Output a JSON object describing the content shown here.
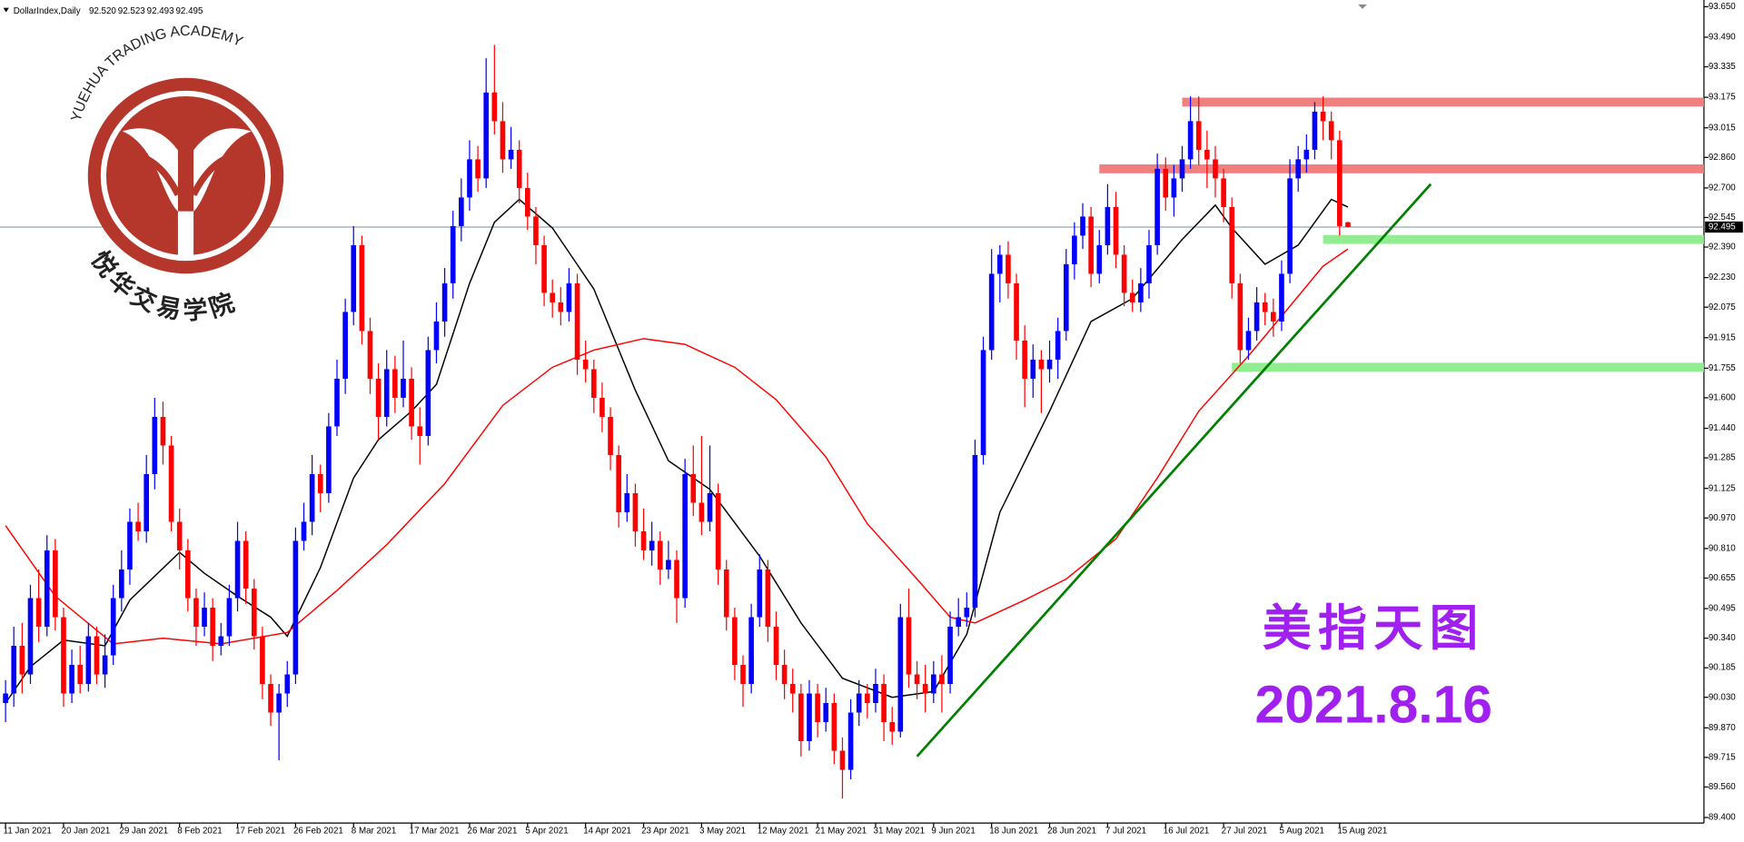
{
  "chart_data": {
    "type": "candlestick",
    "header_text": "DollarIndex,Daily",
    "header_values": [
      "92.520",
      "92.523",
      "92.493",
      "92.495"
    ],
    "logo_text": "YUEHUA TRADING ACADEMY",
    "logo_text_cn": "悦华交易学院",
    "annotations": [
      "美指天图",
      "2021.8.16"
    ],
    "annotation_color": "#a020f0",
    "up_color": "#0000ff",
    "down_color": "#ff0000",
    "ylim": [
      89.4,
      93.65
    ],
    "xlim": [
      -0.67,
      204.97
    ],
    "yticks": [
      {
        "value": 93.65,
        "label": "93.650"
      },
      {
        "value": 93.49,
        "label": "93.490"
      },
      93.335,
      93.175,
      93.015,
      {
        "value": 92.86,
        "label": "92.860"
      },
      {
        "value": 92.7,
        "label": "92.700"
      },
      92.545,
      {
        "value": 92.39,
        "label": "92.390"
      },
      {
        "value": 92.23,
        "label": "92.230"
      },
      92.075,
      91.915,
      91.755,
      {
        "value": 91.6,
        "label": "91.600"
      },
      {
        "value": 91.44,
        "label": "91.440"
      },
      91.285,
      91.125,
      {
        "value": 90.97,
        "label": "90.970"
      },
      {
        "value": 90.81,
        "label": "90.810"
      },
      90.655,
      90.495,
      {
        "value": 90.34,
        "label": "90.340"
      },
      90.185,
      {
        "value": 90.03,
        "label": "90.030"
      },
      {
        "value": 89.87,
        "label": "89.870"
      },
      89.715,
      {
        "value": 89.56,
        "label": "89.560"
      },
      {
        "value": 89.4,
        "label": "89.400"
      }
    ],
    "xticks": [
      {
        "value": 0,
        "label": "11 Jan 2021"
      },
      {
        "value": 7,
        "label": "20 Jan 2021"
      },
      {
        "value": 14,
        "label": "29 Jan 2021"
      },
      {
        "value": 21,
        "label": "8 Feb 2021"
      },
      {
        "value": 28,
        "label": "17 Feb 2021"
      },
      {
        "value": 35,
        "label": "26 Feb 2021"
      },
      {
        "value": 42,
        "label": "8 Mar 2021"
      },
      {
        "value": 49,
        "label": "17 Mar 2021"
      },
      {
        "value": 56,
        "label": "26 Mar 2021"
      },
      {
        "value": 63,
        "label": "5 Apr 2021"
      },
      {
        "value": 70,
        "label": "14 Apr 2021"
      },
      {
        "value": 77,
        "label": "23 Apr 2021"
      },
      {
        "value": 84,
        "label": "3 May 2021"
      },
      {
        "value": 91,
        "label": "12 May 2021"
      },
      {
        "value": 98,
        "label": "21 May 2021"
      },
      {
        "value": 105,
        "label": "31 May 2021"
      },
      {
        "value": 112,
        "label": "9 Jun 2021"
      },
      {
        "value": 119,
        "label": "18 Jun 2021"
      },
      {
        "value": 126,
        "label": "28 Jun 2021"
      },
      {
        "value": 133,
        "label": "7 Jul 2021"
      },
      {
        "value": 140,
        "label": "16 Jul 2021"
      },
      {
        "value": 147,
        "label": "27 Jul 2021"
      },
      {
        "value": 154,
        "label": "5 Aug 2021"
      },
      {
        "value": 161,
        "label": "15 Aug 2021"
      }
    ],
    "last_price": 92.495,
    "ohlc": [
      [
        90.0,
        90.12,
        89.9,
        90.05
      ],
      [
        90.05,
        90.4,
        89.98,
        90.3
      ],
      [
        90.3,
        90.42,
        90.05,
        90.15
      ],
      [
        90.15,
        90.62,
        90.1,
        90.55
      ],
      [
        90.55,
        90.7,
        90.32,
        90.4
      ],
      [
        90.4,
        90.88,
        90.35,
        90.8
      ],
      [
        90.8,
        90.86,
        90.38,
        90.45
      ],
      [
        90.45,
        90.5,
        89.98,
        90.05
      ],
      [
        90.05,
        90.28,
        90.0,
        90.2
      ],
      [
        90.2,
        90.3,
        90.05,
        90.1
      ],
      [
        90.1,
        90.42,
        90.06,
        90.35
      ],
      [
        90.35,
        90.4,
        90.1,
        90.15
      ],
      [
        90.15,
        90.36,
        90.08,
        90.25
      ],
      [
        90.25,
        90.62,
        90.2,
        90.55
      ],
      [
        90.55,
        90.8,
        90.48,
        90.7
      ],
      [
        90.7,
        91.02,
        90.62,
        90.95
      ],
      [
        90.95,
        91.05,
        90.85,
        90.9
      ],
      [
        90.9,
        91.3,
        90.84,
        91.2
      ],
      [
        91.2,
        91.6,
        91.12,
        91.5
      ],
      [
        91.5,
        91.58,
        91.25,
        91.35
      ],
      [
        91.35,
        91.4,
        90.9,
        90.95
      ],
      [
        90.95,
        91.02,
        90.7,
        90.8
      ],
      [
        90.8,
        90.86,
        90.48,
        90.55
      ],
      [
        90.55,
        90.6,
        90.3,
        90.4
      ],
      [
        90.4,
        90.58,
        90.35,
        90.5
      ],
      [
        90.5,
        90.55,
        90.22,
        90.3
      ],
      [
        90.3,
        90.42,
        90.25,
        90.35
      ],
      [
        90.35,
        90.62,
        90.3,
        90.55
      ],
      [
        90.55,
        90.95,
        90.48,
        90.85
      ],
      [
        90.85,
        90.9,
        90.52,
        90.6
      ],
      [
        90.6,
        90.65,
        90.28,
        90.35
      ],
      [
        90.35,
        90.4,
        90.02,
        90.1
      ],
      [
        90.1,
        90.15,
        89.88,
        89.95
      ],
      [
        89.95,
        90.1,
        89.7,
        90.05
      ],
      [
        90.05,
        90.22,
        89.98,
        90.15
      ],
      [
        90.15,
        90.92,
        90.1,
        90.85
      ],
      [
        90.85,
        91.05,
        90.8,
        90.95
      ],
      [
        90.95,
        91.3,
        90.88,
        91.2
      ],
      [
        91.2,
        91.25,
        91.0,
        91.1
      ],
      [
        91.1,
        91.52,
        91.05,
        91.45
      ],
      [
        91.45,
        91.8,
        91.4,
        91.7
      ],
      [
        91.7,
        92.12,
        91.62,
        92.05
      ],
      [
        92.05,
        92.5,
        91.98,
        92.4
      ],
      [
        92.4,
        92.45,
        91.88,
        91.95
      ],
      [
        91.95,
        92.02,
        91.62,
        91.7
      ],
      [
        91.7,
        91.78,
        91.38,
        91.5
      ],
      [
        91.5,
        91.85,
        91.45,
        91.75
      ],
      [
        91.75,
        91.82,
        91.52,
        91.6
      ],
      [
        91.6,
        91.9,
        91.55,
        91.7
      ],
      [
        91.7,
        91.76,
        91.38,
        91.45
      ],
      [
        91.45,
        91.55,
        91.25,
        91.4
      ],
      [
        91.4,
        91.92,
        91.35,
        91.85
      ],
      [
        91.85,
        92.1,
        91.78,
        92.0
      ],
      [
        92.0,
        92.28,
        91.92,
        92.2
      ],
      [
        92.2,
        92.58,
        92.12,
        92.5
      ],
      [
        92.5,
        92.75,
        92.42,
        92.65
      ],
      [
        92.65,
        92.95,
        92.58,
        92.85
      ],
      [
        92.85,
        92.92,
        92.68,
        92.75
      ],
      [
        92.75,
        93.38,
        92.7,
        93.2
      ],
      [
        93.2,
        93.45,
        92.98,
        93.05
      ],
      [
        93.05,
        93.15,
        92.78,
        92.85
      ],
      [
        92.85,
        93.02,
        92.8,
        92.9
      ],
      [
        92.9,
        92.95,
        92.62,
        92.7
      ],
      [
        92.7,
        92.78,
        92.48,
        92.55
      ],
      [
        92.55,
        92.6,
        92.3,
        92.4
      ],
      [
        92.4,
        92.45,
        92.08,
        92.15
      ],
      [
        92.15,
        92.22,
        92.02,
        92.1
      ],
      [
        92.1,
        92.18,
        91.98,
        92.05
      ],
      [
        92.05,
        92.28,
        92.0,
        92.2
      ],
      [
        92.2,
        92.25,
        91.72,
        91.8
      ],
      [
        91.8,
        91.9,
        91.68,
        91.75
      ],
      [
        91.75,
        91.8,
        91.52,
        91.6
      ],
      [
        91.6,
        91.68,
        91.42,
        91.5
      ],
      [
        91.5,
        91.55,
        91.22,
        91.3
      ],
      [
        91.3,
        91.35,
        90.92,
        91.0
      ],
      [
        91.0,
        91.2,
        90.95,
        91.1
      ],
      [
        91.1,
        91.15,
        90.82,
        90.9
      ],
      [
        90.9,
        91.02,
        90.75,
        90.8
      ],
      [
        90.8,
        90.95,
        90.72,
        90.85
      ],
      [
        90.85,
        90.9,
        90.62,
        90.7
      ],
      [
        90.7,
        90.85,
        90.65,
        90.75
      ],
      [
        90.75,
        90.8,
        90.42,
        90.55
      ],
      [
        90.55,
        91.28,
        90.5,
        91.2
      ],
      [
        91.2,
        91.35,
        90.98,
        91.05
      ],
      [
        91.05,
        91.4,
        90.88,
        90.95
      ],
      [
        90.95,
        91.35,
        90.9,
        91.1
      ],
      [
        91.1,
        91.15,
        90.62,
        90.7
      ],
      [
        90.7,
        90.75,
        90.38,
        90.45
      ],
      [
        90.45,
        90.5,
        90.12,
        90.2
      ],
      [
        90.2,
        90.25,
        89.98,
        90.1
      ],
      [
        90.1,
        90.52,
        90.05,
        90.45
      ],
      [
        90.45,
        90.78,
        90.4,
        90.7
      ],
      [
        90.7,
        90.75,
        90.32,
        90.4
      ],
      [
        90.4,
        90.48,
        90.12,
        90.2
      ],
      [
        90.2,
        90.28,
        90.02,
        90.1
      ],
      [
        90.1,
        90.18,
        89.95,
        90.05
      ],
      [
        90.05,
        90.1,
        89.72,
        89.8
      ],
      [
        89.8,
        90.12,
        89.75,
        90.05
      ],
      [
        90.05,
        90.1,
        89.82,
        89.9
      ],
      [
        89.9,
        90.08,
        89.85,
        90.0
      ],
      [
        90.0,
        90.05,
        89.68,
        89.75
      ],
      [
        89.75,
        89.82,
        89.5,
        89.65
      ],
      [
        89.65,
        90.02,
        89.6,
        89.95
      ],
      [
        89.95,
        90.12,
        89.88,
        90.05
      ],
      [
        90.05,
        90.1,
        89.92,
        90.0
      ],
      [
        90.0,
        90.18,
        89.95,
        90.1
      ],
      [
        90.1,
        90.15,
        89.8,
        89.9
      ],
      [
        89.9,
        89.98,
        89.78,
        89.85
      ],
      [
        89.85,
        90.52,
        89.82,
        90.45
      ],
      [
        90.45,
        90.6,
        90.08,
        90.15
      ],
      [
        90.15,
        90.22,
        90.02,
        90.1
      ],
      [
        90.1,
        90.2,
        89.95,
        90.05
      ],
      [
        90.05,
        90.22,
        90.0,
        90.15
      ],
      [
        90.15,
        90.25,
        89.95,
        90.1
      ],
      [
        90.1,
        90.48,
        90.05,
        90.4
      ],
      [
        90.4,
        90.55,
        90.35,
        90.45
      ],
      [
        90.45,
        90.58,
        90.4,
        90.5
      ],
      [
        90.5,
        91.38,
        90.45,
        91.3
      ],
      [
        91.3,
        91.92,
        91.25,
        91.85
      ],
      [
        91.85,
        92.38,
        91.8,
        92.25
      ],
      [
        92.25,
        92.4,
        92.1,
        92.35
      ],
      [
        92.35,
        92.42,
        92.12,
        92.2
      ],
      [
        92.2,
        92.25,
        91.8,
        91.9
      ],
      [
        91.9,
        91.98,
        91.55,
        91.7
      ],
      [
        91.7,
        91.88,
        91.6,
        91.8
      ],
      [
        91.8,
        91.85,
        91.52,
        91.75
      ],
      [
        91.75,
        91.9,
        91.68,
        91.8
      ],
      [
        91.8,
        92.02,
        91.7,
        91.95
      ],
      [
        91.95,
        92.38,
        91.9,
        92.3
      ],
      [
        92.3,
        92.52,
        92.22,
        92.45
      ],
      [
        92.45,
        92.62,
        92.38,
        92.55
      ],
      [
        92.55,
        92.6,
        92.18,
        92.25
      ],
      [
        92.25,
        92.48,
        92.2,
        92.4
      ],
      [
        92.4,
        92.72,
        92.35,
        92.6
      ],
      [
        92.6,
        92.68,
        92.28,
        92.35
      ],
      [
        92.35,
        92.4,
        92.08,
        92.15
      ],
      [
        92.15,
        92.22,
        92.05,
        92.1
      ],
      [
        92.1,
        92.28,
        92.05,
        92.2
      ],
      [
        92.2,
        92.48,
        92.12,
        92.4
      ],
      [
        92.4,
        92.88,
        92.35,
        92.8
      ],
      [
        92.8,
        92.86,
        92.58,
        92.65
      ],
      [
        92.65,
        92.82,
        92.55,
        92.75
      ],
      [
        92.75,
        92.92,
        92.68,
        92.85
      ],
      [
        92.85,
        93.18,
        92.8,
        93.05
      ],
      [
        93.05,
        93.18,
        92.82,
        92.9
      ],
      [
        92.9,
        93.0,
        92.7,
        92.85
      ],
      [
        92.85,
        92.92,
        92.65,
        92.75
      ],
      [
        92.75,
        92.8,
        92.52,
        92.6
      ],
      [
        92.6,
        92.65,
        92.12,
        92.2
      ],
      [
        92.2,
        92.25,
        91.78,
        91.85
      ],
      [
        91.85,
        92.02,
        91.8,
        91.95
      ],
      [
        91.95,
        92.18,
        91.9,
        92.1
      ],
      [
        92.1,
        92.15,
        91.98,
        92.05
      ],
      [
        92.05,
        92.12,
        91.92,
        92.0
      ],
      [
        92.0,
        92.32,
        91.95,
        92.25
      ],
      [
        92.25,
        92.85,
        92.2,
        92.75
      ],
      [
        92.75,
        92.92,
        92.68,
        92.85
      ],
      [
        92.85,
        92.98,
        92.78,
        92.9
      ],
      [
        92.9,
        93.15,
        92.85,
        93.1
      ],
      [
        93.1,
        93.18,
        92.95,
        93.05
      ],
      [
        93.05,
        93.1,
        92.85,
        92.95
      ],
      [
        92.95,
        93.0,
        92.45,
        92.5
      ],
      [
        92.52,
        92.523,
        92.493,
        92.495
      ]
    ],
    "lines": [
      {
        "color": "#000000",
        "x": [
          0,
          3,
          7,
          12,
          15,
          21,
          24,
          28,
          32,
          34,
          38,
          42,
          45,
          49,
          52,
          56,
          59,
          62,
          66,
          71,
          76,
          80,
          85,
          91,
          96,
          101,
          107,
          112,
          116,
          120,
          126,
          131,
          136,
          142,
          146,
          148,
          152,
          156,
          160,
          162
        ],
        "values": [
          90.0,
          90.19,
          90.33,
          90.3,
          90.54,
          90.79,
          90.68,
          90.56,
          90.45,
          90.35,
          90.71,
          91.18,
          91.38,
          91.53,
          91.67,
          92.2,
          92.52,
          92.64,
          92.49,
          92.17,
          91.64,
          91.27,
          91.12,
          90.77,
          90.42,
          90.13,
          90.03,
          90.06,
          90.36,
          91.0,
          91.53,
          92.0,
          92.12,
          92.43,
          92.61,
          92.49,
          92.3,
          92.4,
          92.64,
          92.6
        ]
      },
      {
        "color": "#ff0000",
        "x": [
          0,
          6,
          13,
          19,
          26,
          34,
          40,
          46,
          53,
          60,
          66,
          71,
          77,
          82,
          88,
          93,
          99,
          104,
          110,
          114,
          117,
          123,
          128,
          134,
          139,
          144,
          150,
          155,
          159,
          162
        ],
        "values": [
          90.93,
          90.56,
          90.31,
          90.34,
          90.31,
          90.37,
          90.59,
          90.83,
          91.15,
          91.56,
          91.76,
          91.85,
          91.91,
          91.88,
          91.76,
          91.59,
          91.29,
          90.94,
          90.65,
          90.45,
          90.42,
          90.54,
          90.65,
          90.86,
          91.18,
          91.53,
          91.82,
          92.08,
          92.29,
          92.38
        ]
      },
      {
        "color": "#008000",
        "x": [
          110,
          172
        ],
        "values": [
          89.72,
          92.72
        ]
      }
    ],
    "levels": [
      {
        "value": 93.15,
        "from": 142,
        "color": "#f08080"
      },
      {
        "value": 92.8,
        "from": 132,
        "color": "#f08080"
      },
      {
        "value": 92.43,
        "from": 159,
        "color": "#90ee90"
      },
      {
        "value": 91.76,
        "from": 148,
        "color": "#90ee90"
      }
    ]
  }
}
